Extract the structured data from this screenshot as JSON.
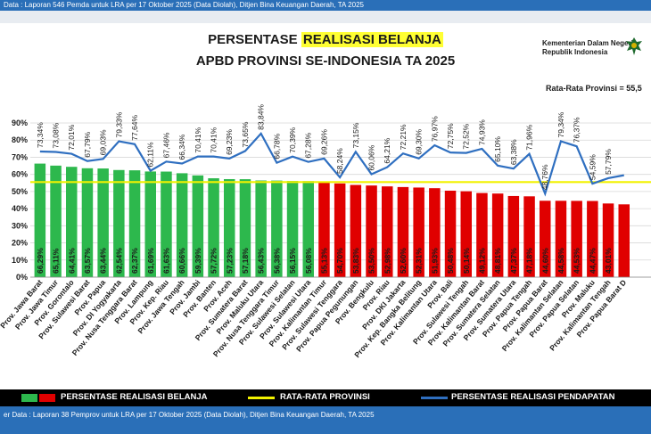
{
  "header": {
    "top_source": "Data : Laporan 546 Pemda untuk LRA per 17 Oktober 2025 (Data Diolah), Ditjen Bina Keuangan Daerah, TA 2025",
    "bottom_source": "er Data : Laporan 38 Pemprov untuk LRA per 17 Oktober 2025 (Data Diolah), Ditjen Bina Keuangan Daerah, TA 2025"
  },
  "slide": {
    "title_prefix": "PERSENTASE",
    "title_highlight": "REALISASI BELANJA",
    "title_line2": "APBD PROVINSI SE-INDONESIA TA 2025",
    "ministry_line1": "Kementerian Dalam Negeri",
    "ministry_line2": "Republik Indonesia",
    "average_label": "Rata-Rata Provinsi = 55,5"
  },
  "legend": {
    "belanja": "PERSENTASE REALISASI BELANJA",
    "rata": "RATA-RATA PROVINSI",
    "pendapatan": "PERSENTASE REALISASI PENDAPATAN"
  },
  "colors": {
    "above_average_bar": "#2db84d",
    "below_average_bar": "#e00000",
    "average_line": "#f2f200",
    "revenue_line": "#2f6fc0",
    "header_blue": "#2a6fb8"
  },
  "chart_data": {
    "type": "bar",
    "ylim": [
      0,
      90
    ],
    "yticks": [
      0,
      10,
      20,
      30,
      40,
      50,
      60,
      70,
      80,
      90
    ],
    "ytick_labels": [
      "0%",
      "10%",
      "20%",
      "30%",
      "40%",
      "50%",
      "60%",
      "70%",
      "80%",
      "90%"
    ],
    "average": 55.5,
    "categories": [
      "Prov. Jawa Barat",
      "Prov. Jawa Timur",
      "Prov. Gorontalo",
      "Prov. Sulawesi Barat",
      "Prov. Papua",
      "Prov. DI Yogyakarta",
      "Prov. Nusa Tenggara Barat",
      "Prov. Lampung",
      "Prov. Kep. Riau",
      "Prov. Jawa Tengah",
      "Prov. Jambi",
      "Prov. Banten",
      "Prov. Aceh",
      "Prov. Sumatera Barat",
      "Prov. Maluku Utara",
      "Prov. Nusa Tenggara Timur",
      "Prov. Sulawesi Selatan",
      "Prov. Sulawesi Utara",
      "Prov. Kalimantan Timur",
      "Prov. Sulawesi Tenggara",
      "Prov. Papua Pegunungan",
      "Prov. Bengkulu",
      "Prov. Riau",
      "Prov. DKI Jakarta",
      "Prov. Kep. Bangka Belitung",
      "Prov. Kalimantan Utara",
      "Prov. Bali",
      "Prov. Sulawesi Tengah",
      "Prov. Kalimantan Barat",
      "Prov. Sumatera Selatan",
      "Prov. Sumatera Utara",
      "Prov. Papua Tengah",
      "Prov. Papua Barat",
      "Prov. Kalimantan Selatan",
      "Prov. Papua Selatan",
      "Prov. Maluku",
      "Prov. Kalimantan Tengah",
      "Prov. Papua Barat D"
    ],
    "bar_labels": [
      "66,29%",
      "65,11%",
      "64,41%",
      "63,57%",
      "63,44%",
      "62,54%",
      "62,37%",
      "61,69%",
      "61,63%",
      "60,66%",
      "59,39%",
      "57,72%",
      "57,23%",
      "57,18%",
      "56,43%",
      "56,38%",
      "56,15%",
      "56,08%",
      "55,13%",
      "54,70%",
      "53,83%",
      "53,50%",
      "52,98%",
      "52,60%",
      "52,31%",
      "51,93%",
      "50,48%",
      "50,14%",
      "49,12%",
      "48,81%",
      "47,37%",
      "47,18%",
      "44,60%",
      "44,58%",
      "44,53%",
      "44,47%",
      "43,01%",
      ""
    ],
    "series": [
      {
        "name": "PERSENTASE REALISASI BELANJA",
        "values": [
          66.29,
          65.11,
          64.41,
          63.57,
          63.44,
          62.54,
          62.37,
          61.69,
          61.63,
          60.66,
          59.39,
          57.72,
          57.23,
          57.18,
          56.43,
          56.38,
          56.15,
          56.08,
          55.13,
          54.7,
          53.83,
          53.5,
          52.98,
          52.6,
          52.31,
          51.93,
          50.48,
          50.14,
          49.12,
          48.81,
          47.37,
          47.18,
          44.6,
          44.58,
          44.53,
          44.47,
          43.01,
          42.5
        ]
      },
      {
        "name": "PERSENTASE REALISASI PENDAPATAN",
        "values": [
          73.34,
          73.08,
          72.01,
          67.79,
          69.03,
          79.33,
          77.64,
          62.11,
          67.46,
          66.34,
          70.41,
          70.41,
          69.23,
          73.65,
          83.84,
          66.78,
          70.39,
          67.28,
          69.26,
          58.24,
          73.15,
          60.06,
          64.21,
          72.21,
          69.3,
          76.97,
          72.75,
          72.52,
          74.93,
          65.1,
          63.38,
          71.96,
          48.76,
          79.34,
          76.37,
          54.59,
          57.79,
          59.5
        ],
        "labels": [
          "73,34%",
          "73,08%",
          "72,01%",
          "67,79%",
          "69,03%",
          "79,33%",
          "77,64%",
          "62,11%",
          "67,46%",
          "66,34%",
          "70,41%",
          "70,41%",
          "69,23%",
          "73,65%",
          "83,84%",
          "66,78%",
          "70,39%",
          "67,28%",
          "69,26%",
          "58,24%",
          "73,15%",
          "60,06%",
          "64,21%",
          "72,21%",
          "69,30%",
          "76,97%",
          "72,75%",
          "72,52%",
          "74,93%",
          "65,10%",
          "63,38%",
          "71,96%",
          "48,76%",
          "79,34%",
          "76,37%",
          "54,59%",
          "57,79%",
          ""
        ]
      }
    ]
  }
}
